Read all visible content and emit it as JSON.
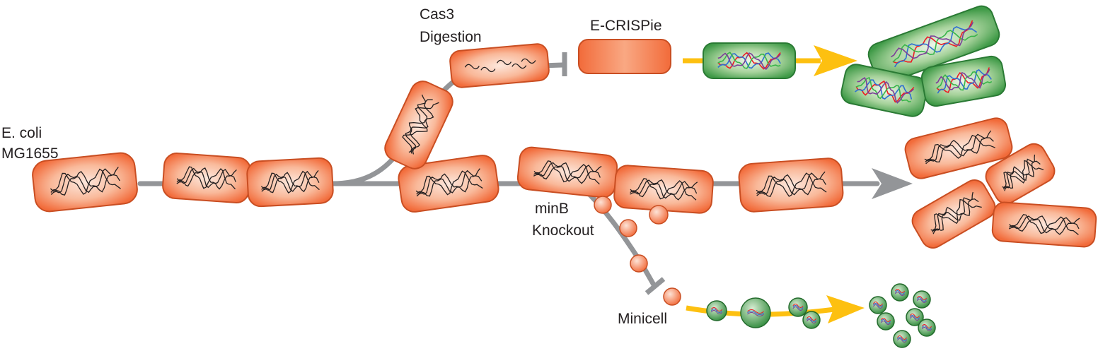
{
  "labels": {
    "strain_line1": "E. coli",
    "strain_line2": "MG1655",
    "cas3_line1": "Cas3",
    "cas3_line2": "Digestion",
    "ecrispie": "E-CRISPie",
    "minb_line1": "minB",
    "minb_line2": "Knockout",
    "minicell": "Minicell"
  },
  "colors": {
    "cell_orange": "#f26b3a",
    "cell_light": "#fde3d6",
    "cell_green": "#3f9a47",
    "cell_green_light": "#e3f1df",
    "arrow_gray": "#939598",
    "arrow_yellow": "#fdc010",
    "dna_black": "#231f20",
    "dna_red": "#ed1c24",
    "dna_blue": "#2e6fd1",
    "dna_green": "#39b54a",
    "dna_purple": "#7b3f98"
  }
}
